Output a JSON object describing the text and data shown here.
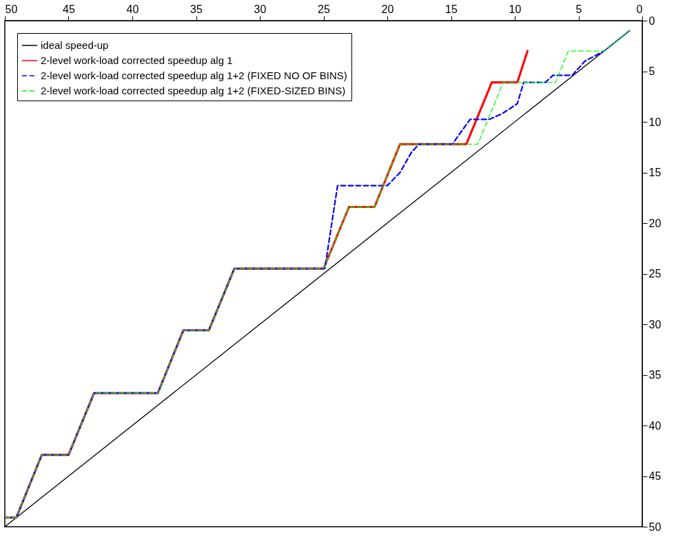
{
  "chart_data": {
    "type": "line",
    "legend": "top left",
    "grid": false,
    "marker": "none",
    "xlim": [
      50,
      0
    ],
    "ylim": [
      50,
      0
    ],
    "xticks": [
      0,
      5,
      10,
      15,
      20,
      25,
      30,
      35,
      40,
      45,
      50
    ],
    "yticks": [
      0,
      5,
      10,
      15,
      20,
      25,
      30,
      35,
      40,
      45,
      50
    ],
    "series": [
      {
        "name": "ideal speed-up",
        "color": "#000000",
        "line_style": "solid",
        "x": [
          1,
          50
        ],
        "values": [
          1,
          50
        ]
      },
      {
        "name": "2-level work-load corrected speedup alg 1",
        "color": "#ff0000",
        "line_style": "solid",
        "x": [
          9,
          9.8,
          11.8,
          13.8,
          19,
          21,
          23,
          25,
          32,
          34,
          36,
          38,
          43,
          45,
          47.1,
          49.1,
          50
        ],
        "values": [
          3,
          6.1,
          6.1,
          12.2,
          12.2,
          18.4,
          18.4,
          24.5,
          24.5,
          30.6,
          30.6,
          36.8,
          36.8,
          42.9,
          42.9,
          49.1,
          49.1
        ]
      },
      {
        "name": "2-level work-load corrected speedup alg 1+2 (FIXED NO OF BINS)",
        "color": "#0000ff",
        "line_style": "dashed",
        "x": [
          1,
          3,
          4.5,
          5.5,
          7,
          7.6,
          9.3,
          9.8,
          11,
          12,
          13.5,
          14.9,
          17.5,
          18.1,
          19,
          20,
          23.9,
          24.9,
          32,
          34,
          36,
          38,
          43,
          45,
          47.1,
          49.1,
          50
        ],
        "values": [
          1,
          3,
          4,
          5.4,
          5.4,
          6.1,
          6.1,
          8.2,
          9.2,
          9.75,
          9.75,
          12.2,
          12.2,
          13,
          15,
          16.3,
          16.3,
          24.5,
          24.5,
          30.6,
          30.6,
          36.8,
          36.8,
          42.9,
          42.9,
          49.1,
          49.1
        ]
      },
      {
        "name": "2-level work-load corrected speedup alg 1+2 (FIXED-SIZED BINS)",
        "color": "#00ff00",
        "line_style": "dashed",
        "x": [
          1,
          3,
          5.8,
          6.8,
          10.9,
          12.9,
          19,
          21,
          23,
          25,
          32,
          34,
          36,
          38,
          43,
          45,
          47.1,
          49.1,
          50
        ],
        "values": [
          1,
          3,
          3,
          6.1,
          6.1,
          12.2,
          12.2,
          18.4,
          18.4,
          24.5,
          24.5,
          30.6,
          30.6,
          36.8,
          36.8,
          42.9,
          42.9,
          49.1,
          49.1
        ]
      }
    ]
  }
}
